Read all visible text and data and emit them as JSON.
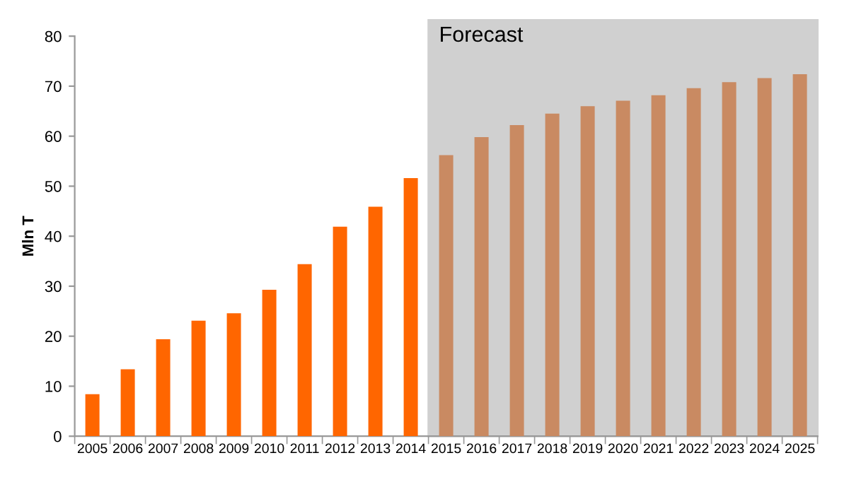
{
  "chart_data": {
    "type": "bar",
    "ylabel": "Mln T",
    "categories": [
      "2005",
      "2006",
      "2007",
      "2008",
      "2009",
      "2010",
      "2011",
      "2012",
      "2013",
      "2014",
      "2015",
      "2016",
      "2017",
      "2018",
      "2019",
      "2020",
      "2021",
      "2022",
      "2023",
      "2024",
      "2025"
    ],
    "values": [
      8.4,
      13.4,
      19.4,
      23.1,
      24.6,
      29.3,
      34.4,
      41.9,
      45.9,
      51.6,
      56.2,
      59.8,
      62.2,
      64.5,
      66.0,
      67.1,
      68.2,
      69.6,
      70.8,
      71.6,
      72.4
    ],
    "colors": [
      "#ff6600",
      "#ff6600",
      "#ff6600",
      "#ff6600",
      "#ff6600",
      "#ff6600",
      "#ff6600",
      "#ff6600",
      "#ff6600",
      "#ff6600",
      "#c98a62",
      "#c98a62",
      "#c98a62",
      "#c98a62",
      "#c98a62",
      "#c98a62",
      "#c98a62",
      "#c98a62",
      "#c98a62",
      "#c98a62",
      "#c98a62"
    ],
    "ylim": [
      0,
      80
    ],
    "yticks": [
      0,
      10,
      20,
      30,
      40,
      50,
      60,
      70,
      80
    ],
    "grid": false,
    "legend": false,
    "bands": [
      {
        "axis": "x",
        "from": "2015",
        "to": "2025",
        "label": "Forecast",
        "color": "#c8c8c8"
      }
    ]
  }
}
